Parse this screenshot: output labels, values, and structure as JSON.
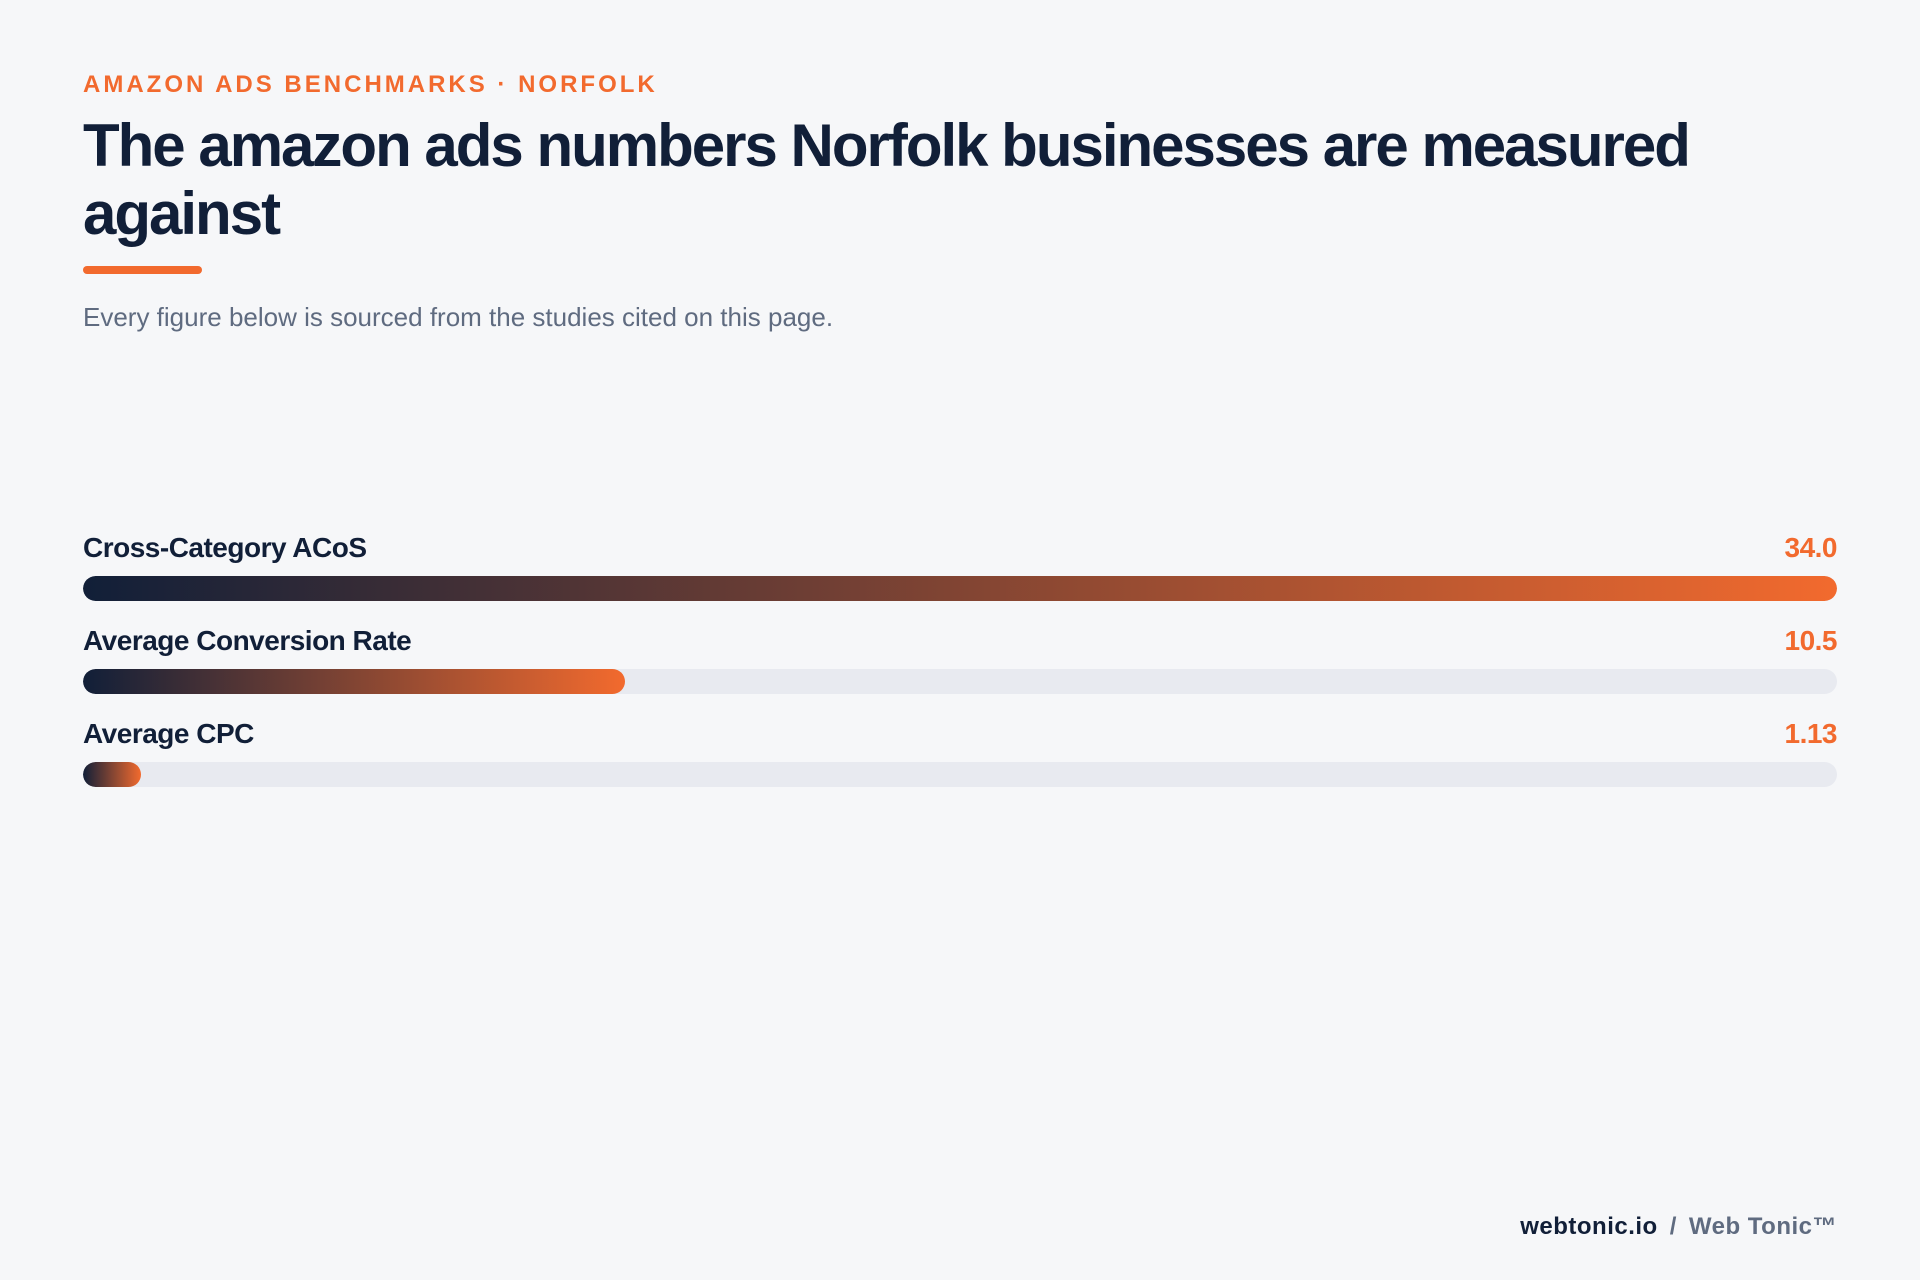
{
  "header": {
    "eyebrow": "AMAZON ADS BENCHMARKS · NORFOLK",
    "title": "The amazon ads numbers Norfolk businesses are measured against",
    "subtitle": "Every figure below is sourced from the studies cited on this page."
  },
  "chart_data": {
    "type": "bar",
    "orientation": "horizontal",
    "categories": [
      "Cross-Category ACoS",
      "Average Conversion Rate",
      "Average CPC"
    ],
    "values": [
      34.0,
      10.5,
      1.13
    ],
    "value_labels": [
      "34.0",
      "10.5",
      "1.13"
    ],
    "xlim": [
      0,
      34.0
    ],
    "colors": {
      "gradient_start": "#111f38",
      "gradient_end": "#f26a2e",
      "track": "#e8eaf0",
      "value_text": "#f26a2e"
    }
  },
  "footer": {
    "domain": "webtonic.io",
    "separator": "/",
    "brand": "Web Tonic™"
  }
}
